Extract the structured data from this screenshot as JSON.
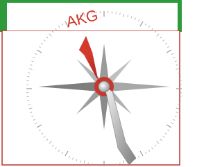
{
  "label": "AKG"
}
